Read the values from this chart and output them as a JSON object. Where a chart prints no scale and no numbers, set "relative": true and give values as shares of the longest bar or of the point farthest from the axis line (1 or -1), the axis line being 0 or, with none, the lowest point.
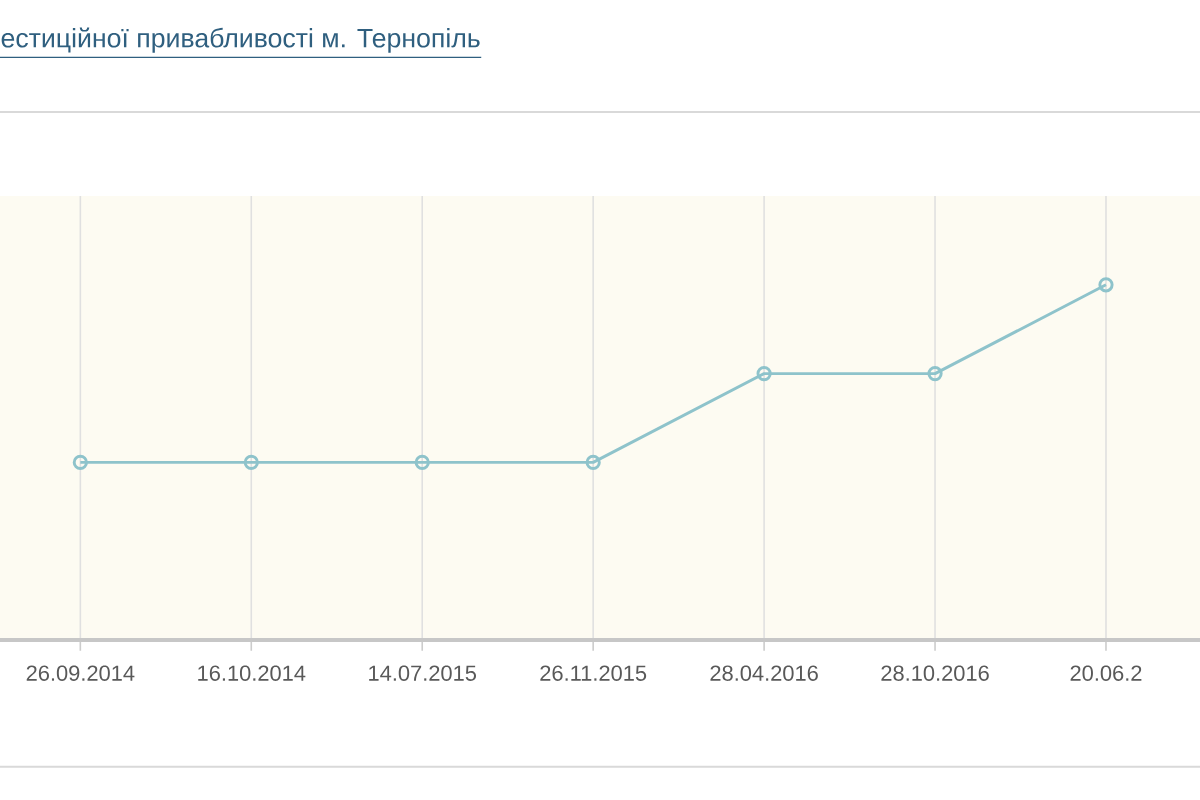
{
  "chart_data": {
    "type": "line",
    "title": "естиційної привабливості м. Тернопіль",
    "categories": [
      "26.09.2014",
      "16.10.2014",
      "14.07.2015",
      "26.11.2015",
      "28.04.2016",
      "28.10.2016",
      "20.06.2"
    ],
    "values": [
      0.5,
      0.5,
      0.5,
      0.5,
      0.75,
      0.75,
      1
    ],
    "relative": true,
    "color": "#8ec3cb",
    "grid": true,
    "marker": "circle",
    "line_style": "solid"
  }
}
